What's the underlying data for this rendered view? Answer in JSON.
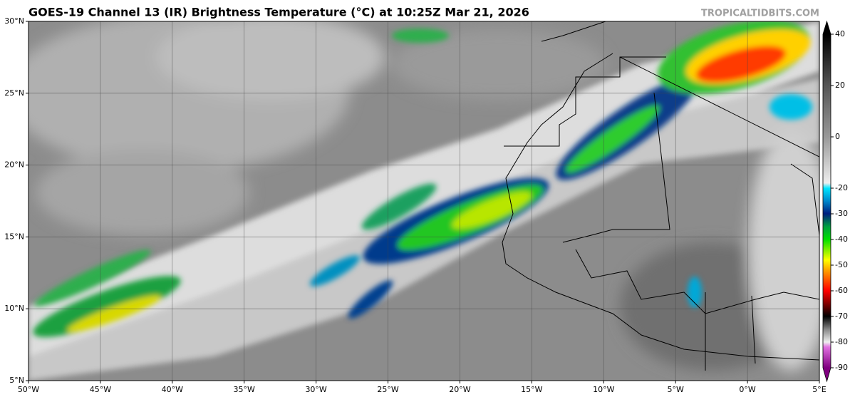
{
  "map": {
    "title": "GOES-19 Channel 13 (IR) Brightness Temperature (°C) at 10:25Z Mar 21, 2026",
    "credit": "TROPICALTIDBITS.COM",
    "xticks": [
      {
        "value": -50,
        "label": "50°W"
      },
      {
        "value": -45,
        "label": "45°W"
      },
      {
        "value": -40,
        "label": "40°W"
      },
      {
        "value": -35,
        "label": "35°W"
      },
      {
        "value": -30,
        "label": "30°W"
      },
      {
        "value": -25,
        "label": "25°W"
      },
      {
        "value": -20,
        "label": "20°W"
      },
      {
        "value": -15,
        "label": "15°W"
      },
      {
        "value": -10,
        "label": "10°W"
      },
      {
        "value": -5,
        "label": "5°W"
      },
      {
        "value": 0,
        "label": "0°W"
      },
      {
        "value": 5,
        "label": "5°E"
      }
    ],
    "yticks": [
      {
        "value": 5,
        "label": "5°N"
      },
      {
        "value": 10,
        "label": "10°N"
      },
      {
        "value": 15,
        "label": "15°N"
      },
      {
        "value": 20,
        "label": "20°N"
      },
      {
        "value": 25,
        "label": "25°N"
      },
      {
        "value": 30,
        "label": "30°N"
      }
    ],
    "colorbar_ticks": [
      40,
      20,
      0,
      -20,
      -30,
      -40,
      -50,
      -60,
      -70,
      -80,
      -90
    ]
  }
}
